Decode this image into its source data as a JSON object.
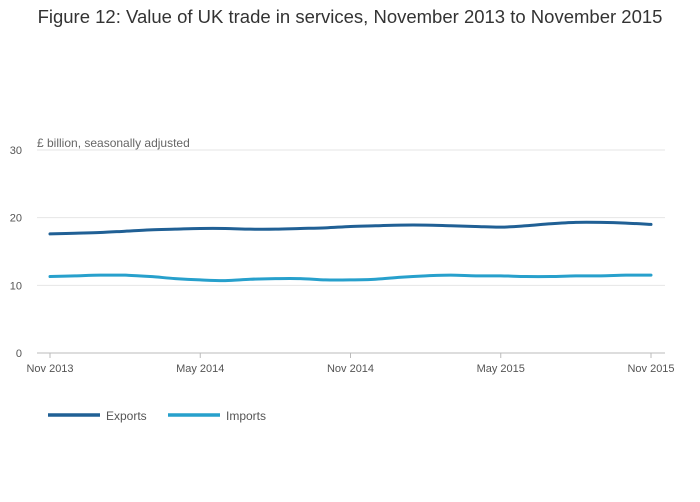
{
  "chart_data": {
    "type": "line",
    "title": "Figure 12: Value of UK trade in services, November 2013 to November 2015",
    "ylabel": "£ billion, seasonally adjusted",
    "xlabel": "",
    "ylim": [
      0,
      30
    ],
    "yticks": [
      "0",
      "10",
      "20",
      "30"
    ],
    "xticks": [
      "Nov 2013",
      "May 2014",
      "Nov 2014",
      "May 2015",
      "Nov 2015"
    ],
    "x": [
      "Nov 2013",
      "Dec 2013",
      "Jan 2014",
      "Feb 2014",
      "Mar 2014",
      "Apr 2014",
      "May 2014",
      "Jun 2014",
      "Jul 2014",
      "Aug 2014",
      "Sep 2014",
      "Oct 2014",
      "Nov 2014",
      "Dec 2014",
      "Jan 2015",
      "Feb 2015",
      "Mar 2015",
      "Apr 2015",
      "May 2015",
      "Jun 2015",
      "Jul 2015",
      "Aug 2015",
      "Sep 2015",
      "Oct 2015",
      "Nov 2015"
    ],
    "series": [
      {
        "name": "Exports",
        "color": "#206095",
        "values": [
          17.6,
          17.7,
          17.8,
          18.0,
          18.2,
          18.3,
          18.4,
          18.4,
          18.3,
          18.3,
          18.4,
          18.5,
          18.7,
          18.8,
          18.9,
          18.9,
          18.8,
          18.7,
          18.6,
          18.8,
          19.1,
          19.3,
          19.3,
          19.2,
          19.0
        ]
      },
      {
        "name": "Imports",
        "color": "#27a0cc",
        "values": [
          11.3,
          11.4,
          11.5,
          11.5,
          11.3,
          11.0,
          10.8,
          10.7,
          10.9,
          11.0,
          11.0,
          10.8,
          10.8,
          10.9,
          11.2,
          11.4,
          11.5,
          11.4,
          11.4,
          11.3,
          11.3,
          11.4,
          11.4,
          11.5,
          11.5
        ]
      }
    ],
    "grid": true,
    "legend_position": "bottom-left"
  }
}
